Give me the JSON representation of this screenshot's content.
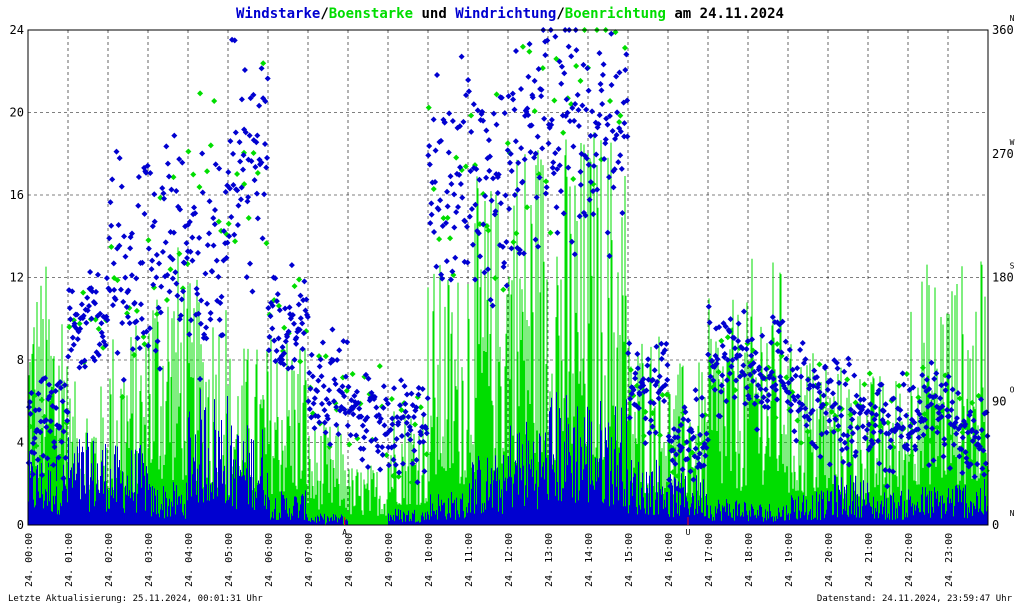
{
  "title": {
    "part1": "Windstarke",
    "sep1": "/",
    "part2": "Boenstarke",
    "part3": " und ",
    "part4": "Windrichtung",
    "sep2": "/",
    "part5": "Boenrichtung",
    "part6": " am 24.11.2024"
  },
  "colors": {
    "wind": "#0000d0",
    "gust": "#00dd00",
    "marker": "#ff0000",
    "grid": "#000000"
  },
  "footer": {
    "left": "Letzte Aktualisierung: 25.11.2024, 00:01:31 Uhr",
    "right": "Datenstand: 24.11.2024, 23:59:47 Uhr"
  },
  "chart_data": {
    "type": "bar",
    "x_unit": "time of day (24.11.2024)",
    "xlim": [
      "00:00",
      "24:00"
    ],
    "ylim": [
      0,
      24
    ],
    "y2lim": [
      0,
      360
    ],
    "grid": true,
    "left_ticks": [
      "0",
      "4",
      "8",
      "12",
      "16",
      "20",
      "24"
    ],
    "right_ticks": [
      "0",
      "90",
      "180",
      "270",
      "360"
    ],
    "compass": [
      "N",
      "O",
      "S",
      "W",
      "N"
    ],
    "x_ticks": [
      "24. 00:00",
      "24. 01:00",
      "24. 02:00",
      "24. 03:00",
      "24. 04:00",
      "24. 05:00",
      "24. 06:00",
      "24. 07:00",
      "24. 08:00",
      "24. 09:00",
      "24. 10:00",
      "24. 11:00",
      "24. 12:00",
      "24. 13:00",
      "24. 14:00",
      "24. 15:00",
      "24. 16:00",
      "24. 17:00",
      "24. 18:00",
      "24. 19:00",
      "24. 20:00",
      "24. 21:00",
      "24. 22:00",
      "24. 23:00"
    ],
    "markers": [
      {
        "time": "07:55",
        "label": "A"
      },
      {
        "time": "16:30",
        "label": "U"
      }
    ],
    "series": [
      {
        "name": "Windstarke",
        "kind": "bars",
        "color": "#0000d0",
        "values": [
          2.5,
          3.2,
          2.8,
          1.5,
          4.8,
          3.6,
          1.2,
          0.4,
          0,
          0.6,
          1.2,
          2.5,
          3.8,
          4.8,
          4.5,
          2.4,
          1.8,
          1.0,
          0.8,
          1.2,
          1.8,
          1.2,
          1.4,
          1.6
        ]
      },
      {
        "name": "Boenstarke",
        "kind": "bars",
        "color": "#00dd00",
        "values": [
          13.0,
          7.0,
          10.0,
          14.0,
          12.0,
          9.0,
          10.0,
          5.0,
          3.0,
          6.5,
          13.0,
          17.0,
          20.0,
          19.5,
          20.0,
          10.0,
          8.0,
          11.0,
          13.0,
          9.0,
          8.0,
          7.5,
          13.0,
          13.0
        ]
      },
      {
        "name": "Windrichtung",
        "kind": "scatter",
        "color": "#0000d0",
        "y_unit": "degrees",
        "values": [
          70,
          150,
          190,
          200,
          190,
          260,
          150,
          100,
          80,
          70,
          250,
          250,
          280,
          290,
          290,
          100,
          60,
          120,
          110,
          90,
          85,
          70,
          80,
          70
        ]
      },
      {
        "name": "Boenrichtung",
        "kind": "scatter",
        "color": "#00dd00",
        "y_unit": "degrees",
        "values": [
          65,
          140,
          170,
          200,
          230,
          270,
          140,
          95,
          80,
          70,
          240,
          250,
          280,
          300,
          290,
          90,
          60,
          110,
          100,
          90,
          80,
          70,
          75,
          70
        ]
      }
    ]
  }
}
